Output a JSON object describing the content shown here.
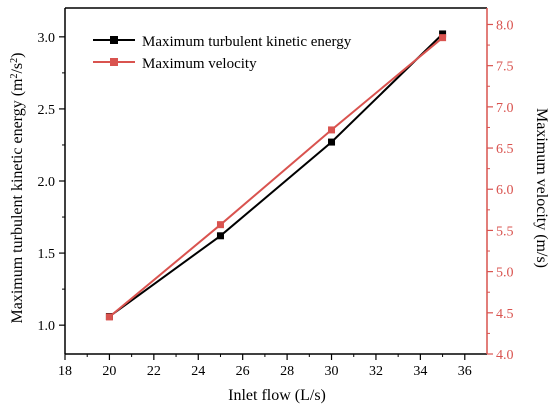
{
  "chart_data": {
    "type": "line",
    "xlabel": "Inlet flow (L/s)",
    "ylabel_left_main": "Maximum turbulent kinetic energy (m",
    "ylabel_left_sup1": "2",
    "ylabel_left_mid": "/s",
    "ylabel_left_sup2": "2",
    "ylabel_left_end": ")",
    "ylabel_right": "Maximum velocity (m/s)",
    "x": [
      20,
      25,
      30,
      35
    ],
    "xlim": [
      18,
      37
    ],
    "xticks": [
      "18",
      "20",
      "22",
      "24",
      "26",
      "28",
      "30",
      "32",
      "34",
      "36"
    ],
    "ylim_left": [
      0.8,
      3.2
    ],
    "yticks_left": [
      "1.0",
      "1.5",
      "2.0",
      "2.5",
      "3.0"
    ],
    "ylim_right": [
      4.0,
      8.2
    ],
    "yticks_right": [
      "4.0",
      "4.5",
      "5.0",
      "5.5",
      "6.0",
      "6.5",
      "7.0",
      "7.5",
      "8.0"
    ],
    "legend_position": "top-left",
    "grid": false,
    "series": [
      {
        "name": "Maximum turbulent kinetic energy",
        "axis": "left",
        "color": "#000000",
        "marker": "square",
        "values": [
          1.06,
          1.62,
          2.27,
          3.02
        ]
      },
      {
        "name": "Maximum velocity",
        "axis": "right",
        "color": "#d9534f",
        "marker": "square",
        "values": [
          4.45,
          5.57,
          6.72,
          7.84
        ]
      }
    ]
  }
}
